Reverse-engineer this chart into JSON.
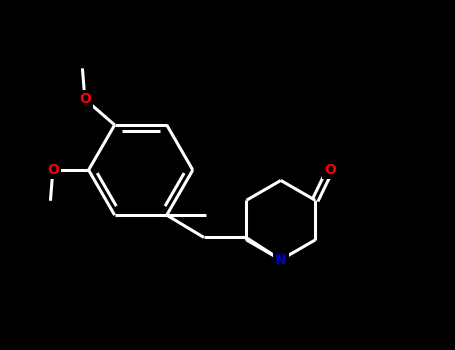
{
  "background_color": "#000000",
  "line_color": "#ffffff",
  "atom_colors": {
    "O": "#ff0000",
    "N": "#0000cc"
  },
  "line_width": 2.2,
  "figsize": [
    4.55,
    3.5
  ],
  "dpi": 100,
  "xlim": [
    0,
    9.1
  ],
  "ylim": [
    0,
    7.0
  ]
}
